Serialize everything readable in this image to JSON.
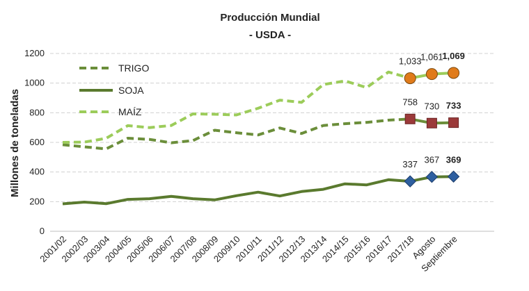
{
  "chart_data": {
    "type": "line",
    "title": "Producción Mundial",
    "subtitle": "- USDA -",
    "ylabel": "Millones de toneladas",
    "ylim": [
      0,
      1200
    ],
    "yticks": [
      "0",
      "200",
      "400",
      "600",
      "800",
      "1000",
      "1200"
    ],
    "categories": [
      "2001/02",
      "2002/03",
      "2003/04",
      "2004/05",
      "2005/06",
      "2006/07",
      "2007/08",
      "2008/09",
      "2009/10",
      "2010/11",
      "2011/12",
      "2012/13",
      "2013/14",
      "2014/15",
      "2015/16",
      "2016/17",
      "2017/18",
      "Agosto",
      "Septiembre"
    ],
    "grid": true,
    "legend_position": "top-left",
    "series": [
      {
        "name": "TRIGO",
        "style": "dashed",
        "color": "#6b8e3a",
        "marker_color": "#9b3a3a",
        "marker_shape": "square",
        "values": [
          584,
          570,
          556,
          628,
          620,
          597,
          612,
          682,
          665,
          650,
          697,
          660,
          714,
          726,
          735,
          750,
          758,
          730,
          733
        ],
        "labels": [
          "758",
          "730",
          "733"
        ]
      },
      {
        "name": "SOJA",
        "style": "solid",
        "color": "#5a7a2e",
        "marker_color": "#2e5fa0",
        "marker_shape": "diamond",
        "values": [
          185,
          197,
          186,
          215,
          220,
          236,
          220,
          212,
          240,
          264,
          238,
          268,
          283,
          320,
          313,
          348,
          337,
          367,
          369
        ],
        "labels": [
          "337",
          "367",
          "369"
        ]
      },
      {
        "name": "MAÍZ",
        "style": "dashed",
        "color": "#9ccc5a",
        "marker_color": "#e07b1a",
        "marker_shape": "circle",
        "values": [
          600,
          602,
          627,
          713,
          700,
          714,
          792,
          790,
          785,
          830,
          885,
          870,
          990,
          1015,
          970,
          1075,
          1033,
          1061,
          1069
        ],
        "labels": [
          "1,033",
          "1,061",
          "1,069"
        ]
      }
    ]
  }
}
